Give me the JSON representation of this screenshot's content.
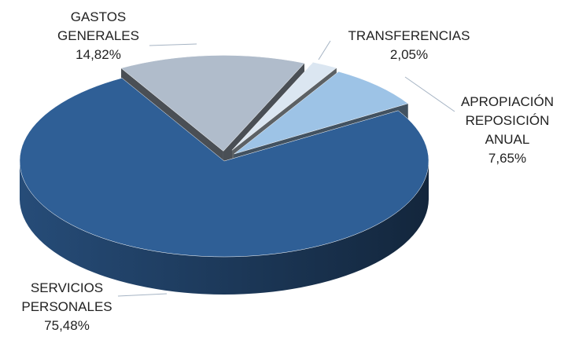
{
  "chart_data": {
    "type": "pie",
    "categories": [
      "GASTOS GENERALES",
      "TRANSFERENCIAS",
      "APROPIACIÓN REPOSICIÓN ANUAL",
      "SERVICIOS PERSONALES"
    ],
    "values": [
      14.82,
      2.05,
      7.65,
      75.48
    ],
    "value_labels": [
      "14,82%",
      "2,05%",
      "7,65%",
      "75,48%"
    ],
    "colors": [
      "#b0bccb",
      "#dbe6f1",
      "#9dc3e6",
      "#2f5f96"
    ]
  }
}
